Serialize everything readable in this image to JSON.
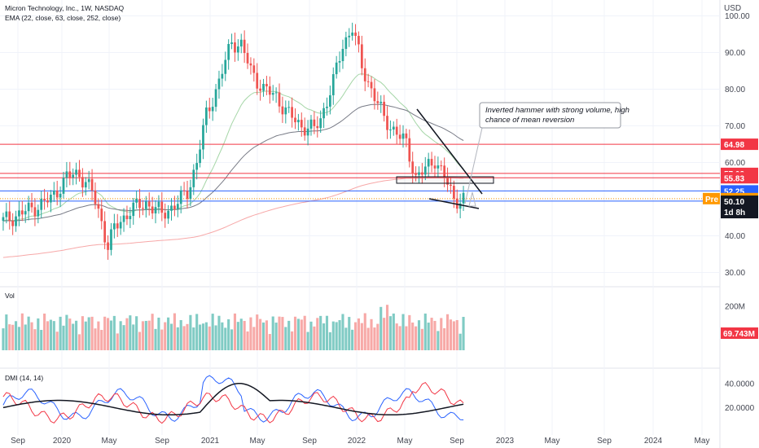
{
  "header": {
    "title": "Micron Technology, Inc., 1W, NASDAQ",
    "indicator": "EMA (22, close, 63, close, 252, close)"
  },
  "currency": "USD",
  "colors": {
    "up": "#26a69a",
    "down": "#ef5350",
    "ema22": "#a5d6a7",
    "ema63": "#787b86",
    "ema252": "#f7a8a8",
    "red_line": "#f23645",
    "blue_line": "#2962ff",
    "vol_up": "#80cbc4",
    "vol_down": "#f7a9a7"
  },
  "chart_data": [
    {
      "type": "candlestick",
      "pane": "price",
      "ylim": [
        27,
        103
      ],
      "y_ticks": [
        "100.00",
        "90.00",
        "80.00",
        "70.00",
        "60.00",
        "50.00",
        "40.00",
        "30.00"
      ],
      "x_ticks": [
        "Sep",
        "2020",
        "May",
        "Sep",
        "2021",
        "May",
        "Sep",
        "2022",
        "May",
        "Sep",
        "2023",
        "May",
        "Sep",
        "2024",
        "May"
      ],
      "horizontal_levels": [
        {
          "value": 64.98,
          "label": "64.98",
          "color": "red"
        },
        {
          "value": 57.03,
          "label": "57.03",
          "color": "red"
        },
        {
          "value": 55.83,
          "label": "55.83",
          "color": "red"
        },
        {
          "value": 52.25,
          "label": "52.25",
          "color": "blue"
        },
        {
          "value": 49.48,
          "label": "49.48",
          "color": "blue"
        }
      ],
      "price_tags": [
        {
          "value": 50.15,
          "label": "50.15",
          "prefix": "Pre"
        },
        {
          "value": 50.1,
          "label": "50.10",
          "sub": "1d 8h"
        }
      ],
      "annotation": "Inverted hammer with strong volume, high chance of mean reversion",
      "ema_series": [
        "EMA 22",
        "EMA 63",
        "EMA 252"
      ]
    },
    {
      "type": "bar",
      "pane": "volume",
      "title": "Vol",
      "y_ticks": [
        "200M"
      ],
      "last_value": "69.743M"
    },
    {
      "type": "line",
      "pane": "dmi",
      "title": "DMI (14, 14)",
      "y_ticks": [
        "40.0000",
        "20.0000"
      ],
      "series": [
        "+DI",
        "-DI",
        "ADX"
      ]
    }
  ]
}
